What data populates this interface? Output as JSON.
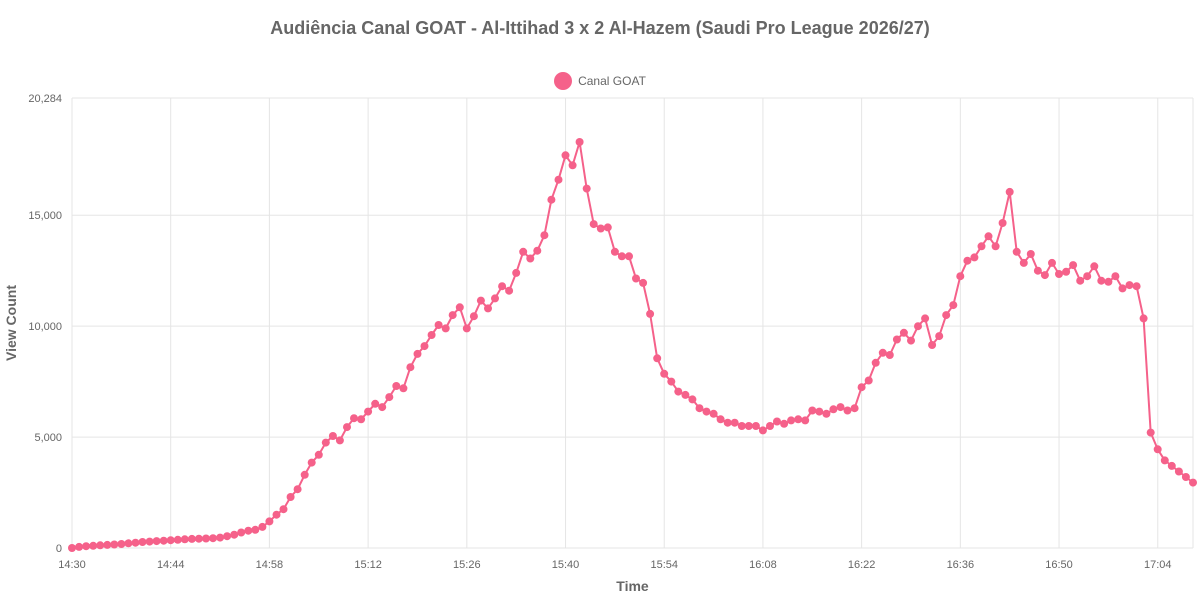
{
  "chart_data": {
    "type": "line",
    "title": "Audiência Canal GOAT - Al-Ittihad 3 x 2 Al-Hazem (Saudi Pro League 2026/27)",
    "xlabel": "Time",
    "ylabel": "View Count",
    "ylim": [
      0,
      20284
    ],
    "y_ticks": [
      "0",
      "5,000",
      "10,000",
      "15,000",
      "20,284"
    ],
    "y_tick_values": [
      0,
      5000,
      10000,
      15000,
      20284
    ],
    "x_ticks": [
      "14:30",
      "14:44",
      "14:58",
      "15:12",
      "15:26",
      "15:40",
      "15:54",
      "16:08",
      "16:22",
      "16:36",
      "16:50",
      "17:04"
    ],
    "x_range_minutes": [
      0,
      159
    ],
    "grid": true,
    "legend_position": "top",
    "series": [
      {
        "name": "Canal GOAT",
        "color": "#f5618a",
        "values": [
          0,
          50,
          80,
          100,
          120,
          140,
          160,
          180,
          210,
          240,
          270,
          290,
          310,
          330,
          350,
          370,
          390,
          410,
          420,
          430,
          440,
          470,
          530,
          600,
          700,
          780,
          820,
          950,
          1200,
          1500,
          1750,
          2300,
          2650,
          3300,
          3850,
          4200,
          4750,
          5050,
          4850,
          5450,
          5850,
          5800,
          6150,
          6500,
          6350,
          6800,
          7300,
          7200,
          8150,
          8750,
          9100,
          9600,
          10050,
          9900,
          10500,
          10850,
          9900,
          10450,
          11150,
          10800,
          11250,
          11800,
          11600,
          12400,
          13350,
          13050,
          13400,
          14100,
          15700,
          16600,
          17700,
          17250,
          18300,
          16200,
          14600,
          14400,
          14450,
          13350,
          13150,
          13150,
          12150,
          11950,
          10550,
          8550,
          7850,
          7500,
          7050,
          6900,
          6700,
          6300,
          6150,
          6050,
          5800,
          5650,
          5650,
          5500,
          5500,
          5500,
          5300,
          5500,
          5700,
          5600,
          5750,
          5800,
          5750,
          6200,
          6150,
          6050,
          6250,
          6350,
          6200,
          6300,
          7250,
          7550,
          8350,
          8800,
          8700,
          9400,
          9700,
          9350,
          10000,
          10350,
          9150,
          9550,
          10500,
          10950,
          12250,
          12950,
          13100,
          13600,
          14050,
          13600,
          14650,
          16050,
          13350,
          12850,
          13250,
          12500,
          12300,
          12850,
          12350,
          12450,
          12750,
          12050,
          12250,
          12700,
          12050,
          12000,
          12250,
          11700,
          11850,
          11800,
          10350,
          5200,
          4450,
          3950,
          3700,
          3450,
          3200,
          2950
        ]
      }
    ]
  }
}
